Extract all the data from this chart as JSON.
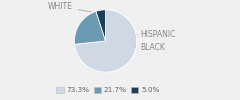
{
  "labels": [
    "WHITE",
    "HISPANIC",
    "BLACK"
  ],
  "values": [
    73.3,
    21.7,
    5.0
  ],
  "colors": [
    "#cfd8e3",
    "#6a9bb5",
    "#1e3f5a"
  ],
  "legend_labels": [
    "73.3%",
    "21.7%",
    "5.0%"
  ],
  "startangle": 90,
  "counterclock": false,
  "annotation_fontsize": 5.5,
  "annotation_color": "#888888",
  "legend_fontsize": 5.2,
  "bg_color": "#f0f0f0"
}
